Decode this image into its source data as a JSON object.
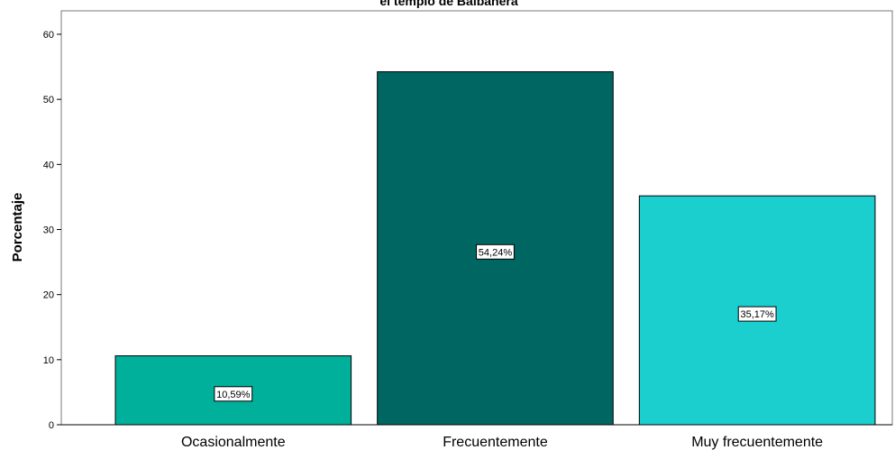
{
  "chart_data": {
    "type": "bar",
    "title": "el templo de Balbanera",
    "xlabel": "",
    "ylabel": "Porcentaje",
    "ylim": [
      0,
      60
    ],
    "yticks": [
      0,
      10,
      20,
      30,
      40,
      50,
      60
    ],
    "grid": false,
    "categories": [
      "Ocasionalmente",
      "Frecuentemente",
      "Muy frecuentemente"
    ],
    "values": [
      10.59,
      54.24,
      35.17
    ],
    "data_labels": [
      "10,59%",
      "54,24%",
      "35,17%"
    ],
    "colors": [
      "#00b09a",
      "#006662",
      "#1ccfcf"
    ]
  }
}
